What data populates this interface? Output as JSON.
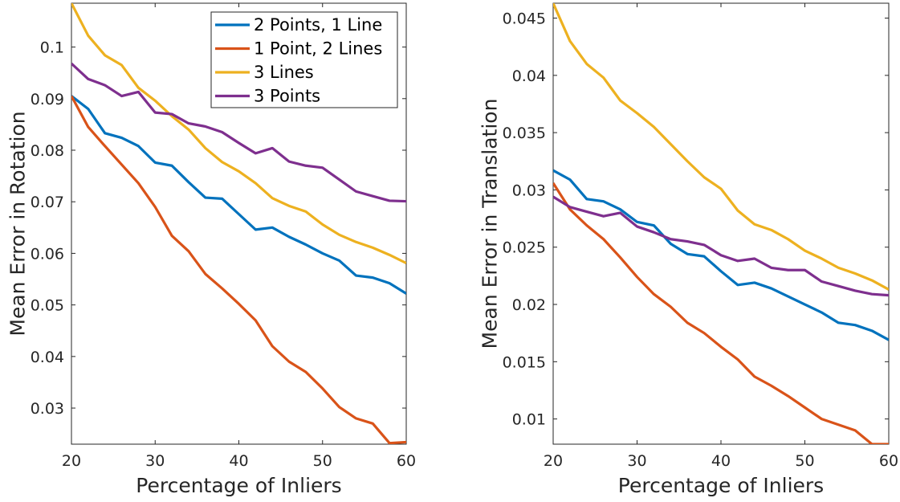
{
  "chart_data": [
    {
      "type": "line",
      "xlabel": "Percentage of Inliers",
      "ylabel": "Mean Error in Rotation",
      "xlim": [
        20,
        60
      ],
      "ylim": [
        0.023,
        0.1085
      ],
      "xticks": [
        20,
        30,
        40,
        50,
        60
      ],
      "yticks": [
        0.03,
        0.04,
        0.05,
        0.06,
        0.07,
        0.08,
        0.09,
        0.1
      ],
      "ytick_labels": [
        "0.03",
        "0.04",
        "0.05",
        "0.06",
        "0.07",
        "0.08",
        "0.09",
        "0.1"
      ],
      "legend": "top-right",
      "x": [
        20,
        22,
        24,
        26,
        28,
        30,
        32,
        34,
        36,
        38,
        40,
        42,
        44,
        46,
        48,
        50,
        52,
        54,
        56,
        58,
        60
      ],
      "series": [
        {
          "name": "2 Points, 1 Line",
          "color": "#0072BD",
          "values": [
            0.0905,
            0.088,
            0.0833,
            0.0824,
            0.0808,
            0.0776,
            0.077,
            0.0738,
            0.0708,
            0.0706,
            0.0676,
            0.0646,
            0.065,
            0.0632,
            0.0617,
            0.06,
            0.0586,
            0.0557,
            0.0553,
            0.0542,
            0.0522
          ]
        },
        {
          "name": "1 Point, 2 Lines",
          "color": "#D95319",
          "values": [
            0.0905,
            0.0845,
            0.0808,
            0.0772,
            0.0736,
            0.069,
            0.0634,
            0.0604,
            0.056,
            0.0532,
            0.0502,
            0.047,
            0.042,
            0.039,
            0.037,
            0.0338,
            0.0302,
            0.028,
            0.027,
            0.0232,
            0.0234
          ]
        },
        {
          "name": "3 Lines",
          "color": "#EDB120",
          "values": [
            0.1085,
            0.1022,
            0.0984,
            0.0965,
            0.0921,
            0.0896,
            0.0866,
            0.084,
            0.0804,
            0.0777,
            0.0759,
            0.0736,
            0.0707,
            0.0692,
            0.0681,
            0.0656,
            0.0636,
            0.0622,
            0.0611,
            0.0597,
            0.0581
          ]
        },
        {
          "name": "3 Points",
          "color": "#7E2F8E",
          "values": [
            0.0968,
            0.0938,
            0.0926,
            0.0905,
            0.0913,
            0.0873,
            0.087,
            0.0852,
            0.0846,
            0.0835,
            0.0814,
            0.0794,
            0.0804,
            0.0778,
            0.077,
            0.0766,
            0.0743,
            0.072,
            0.0711,
            0.0702,
            0.0701
          ]
        }
      ]
    },
    {
      "type": "line",
      "xlabel": "Percentage of Inliers",
      "ylabel": "Mean Error in Translation",
      "xlim": [
        20,
        60
      ],
      "ylim": [
        0.0078,
        0.0463
      ],
      "xticks": [
        20,
        30,
        40,
        50,
        60
      ],
      "yticks": [
        0.01,
        0.015,
        0.02,
        0.025,
        0.03,
        0.035,
        0.04,
        0.045
      ],
      "ytick_labels": [
        "0.01",
        "0.015",
        "0.02",
        "0.025",
        "0.03",
        "0.035",
        "0.04",
        "0.045"
      ],
      "x": [
        20,
        22,
        24,
        26,
        28,
        30,
        32,
        34,
        36,
        38,
        40,
        42,
        44,
        46,
        48,
        50,
        52,
        54,
        56,
        58,
        60
      ],
      "series": [
        {
          "name": "2 Points, 1 Line",
          "color": "#0072BD",
          "values": [
            0.0317,
            0.0309,
            0.0292,
            0.029,
            0.0283,
            0.0272,
            0.0269,
            0.0253,
            0.0244,
            0.0242,
            0.0229,
            0.0217,
            0.0219,
            0.0214,
            0.0207,
            0.02,
            0.0193,
            0.0184,
            0.0182,
            0.0177,
            0.0169
          ]
        },
        {
          "name": "1 Point, 2 Lines",
          "color": "#D95319",
          "values": [
            0.0306,
            0.0283,
            0.0269,
            0.0257,
            0.0241,
            0.0224,
            0.0209,
            0.0198,
            0.0184,
            0.0175,
            0.0163,
            0.0152,
            0.0137,
            0.0129,
            0.012,
            0.011,
            0.01,
            0.0095,
            0.009,
            0.0078,
            0.0078
          ]
        },
        {
          "name": "3 Lines",
          "color": "#EDB120",
          "values": [
            0.0463,
            0.043,
            0.041,
            0.0398,
            0.0378,
            0.0367,
            0.0355,
            0.034,
            0.0325,
            0.0311,
            0.0301,
            0.0282,
            0.027,
            0.0265,
            0.0257,
            0.0247,
            0.024,
            0.0232,
            0.0227,
            0.0221,
            0.0213
          ]
        },
        {
          "name": "3 Points",
          "color": "#7E2F8E",
          "values": [
            0.0294,
            0.0285,
            0.0281,
            0.0277,
            0.028,
            0.0268,
            0.0263,
            0.0257,
            0.0255,
            0.0252,
            0.0243,
            0.0238,
            0.024,
            0.0232,
            0.023,
            0.023,
            0.022,
            0.0216,
            0.0212,
            0.0209,
            0.0208
          ]
        }
      ]
    }
  ]
}
